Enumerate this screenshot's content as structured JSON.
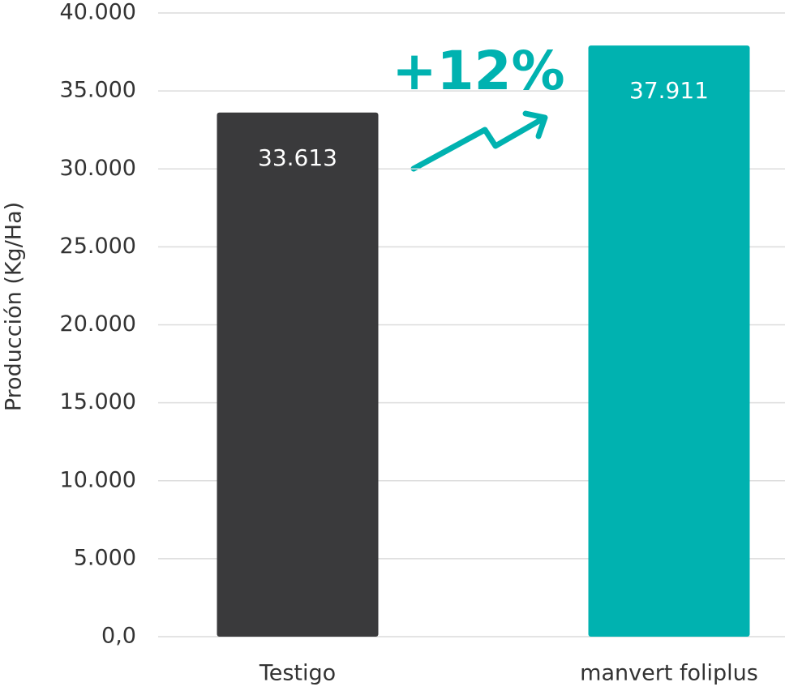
{
  "chart_data": {
    "type": "bar",
    "y_axis_label": "Producción (Kg/Ha)",
    "categories": [
      "Testigo",
      "manvert foliplus"
    ],
    "values": [
      33613,
      37911
    ],
    "value_labels": [
      "33.613",
      "37.911"
    ],
    "colors": [
      "#3a3a3c",
      "#00b2b0"
    ],
    "annotation": "+12%",
    "ylim": [
      0,
      40000
    ],
    "yticks": [
      {
        "value": 0,
        "label": "0,0"
      },
      {
        "value": 5000,
        "label": "5.000"
      },
      {
        "value": 10000,
        "label": "10.000"
      },
      {
        "value": 15000,
        "label": "15.000"
      },
      {
        "value": 20000,
        "label": "20.000"
      },
      {
        "value": 25000,
        "label": "25.000"
      },
      {
        "value": 30000,
        "label": "30.000"
      },
      {
        "value": 35000,
        "label": "35.000"
      },
      {
        "value": 40000,
        "label": "40.000"
      }
    ],
    "grid": true
  }
}
